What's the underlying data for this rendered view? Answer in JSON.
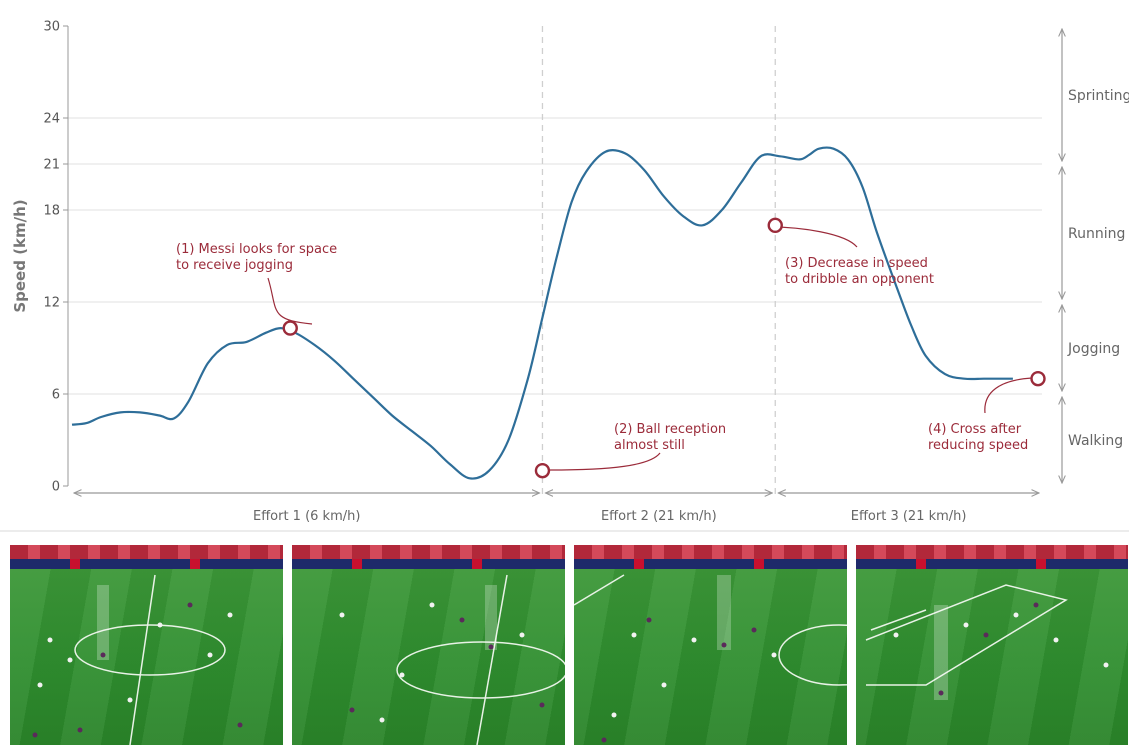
{
  "chart_data": {
    "type": "line",
    "ylabel": "Speed (km/h)",
    "xlabel": "",
    "title": "",
    "ylim": [
      0,
      30
    ],
    "xlim": [
      0,
      100
    ],
    "yticks": [
      0,
      6,
      12,
      18,
      21,
      24,
      30
    ],
    "grid": true,
    "series": [
      {
        "x": [
          0,
          1.5,
          3,
          5,
          7,
          9,
          10.5,
          12,
          14,
          16,
          18,
          20,
          21.5,
          23,
          25,
          27,
          29,
          31,
          33,
          35,
          37,
          39,
          41,
          43,
          45,
          47,
          48.5,
          50,
          51.5,
          53,
          55,
          57,
          59,
          61,
          63,
          65,
          67,
          69,
          71,
          73,
          75,
          76,
          77,
          78.5,
          80,
          81.5,
          83,
          85,
          86.5,
          88,
          90,
          92,
          94,
          95.5,
          97
        ],
        "values": [
          4.0,
          4.1,
          4.5,
          4.8,
          4.8,
          4.6,
          4.4,
          5.5,
          8.0,
          9.2,
          9.4,
          10.0,
          10.3,
          10.0,
          9.2,
          8.2,
          7.0,
          5.8,
          4.6,
          3.6,
          2.6,
          1.4,
          0.5,
          1.0,
          3.0,
          7.0,
          11.0,
          15.0,
          18.5,
          20.5,
          21.8,
          21.7,
          20.6,
          18.9,
          17.6,
          17.0,
          18.0,
          19.8,
          21.5,
          21.5,
          21.3,
          21.6,
          22.0,
          22.0,
          21.3,
          19.5,
          16.5,
          13.0,
          10.5,
          8.5,
          7.3,
          7.0,
          7.0,
          7.0,
          7.0
        ]
      }
    ],
    "markers": [
      {
        "x": 22.5,
        "y": 10.3
      },
      {
        "x": 48.5,
        "y": 1.0
      },
      {
        "x": 72.5,
        "y": 17.0
      },
      {
        "x": 100,
        "y": 7.0
      }
    ],
    "annotations": [
      {
        "lines": [
          "(1) Messi looks for space",
          "to receive jogging"
        ]
      },
      {
        "lines": [
          "(2) Ball reception",
          "almost still"
        ]
      },
      {
        "lines": [
          "(3) Decrease in speed",
          "to dribble an opponent"
        ]
      },
      {
        "lines": [
          "(4) Cross after",
          "reducing speed"
        ]
      }
    ],
    "speed_zones": [
      {
        "label": "Walking",
        "from": 0,
        "to": 6
      },
      {
        "label": "Jogging",
        "from": 6,
        "to": 12
      },
      {
        "label": "Running",
        "from": 12,
        "to": 21
      },
      {
        "label": "Sprinting",
        "from": 21,
        "to": 30
      }
    ],
    "efforts": [
      {
        "label": "Effort 1 (6 km/h)",
        "from": 0,
        "to": 48.5
      },
      {
        "label": "Effort 2 (21 km/h)",
        "from": 48.5,
        "to": 72.5
      },
      {
        "label": "Effort 3 (21 km/h)",
        "from": 72.5,
        "to": 100
      }
    ]
  },
  "colors": {
    "line": "#2e6e99",
    "annotation": "#9b2b3a",
    "axis": "#999999",
    "grid": "#e2e2e2"
  }
}
